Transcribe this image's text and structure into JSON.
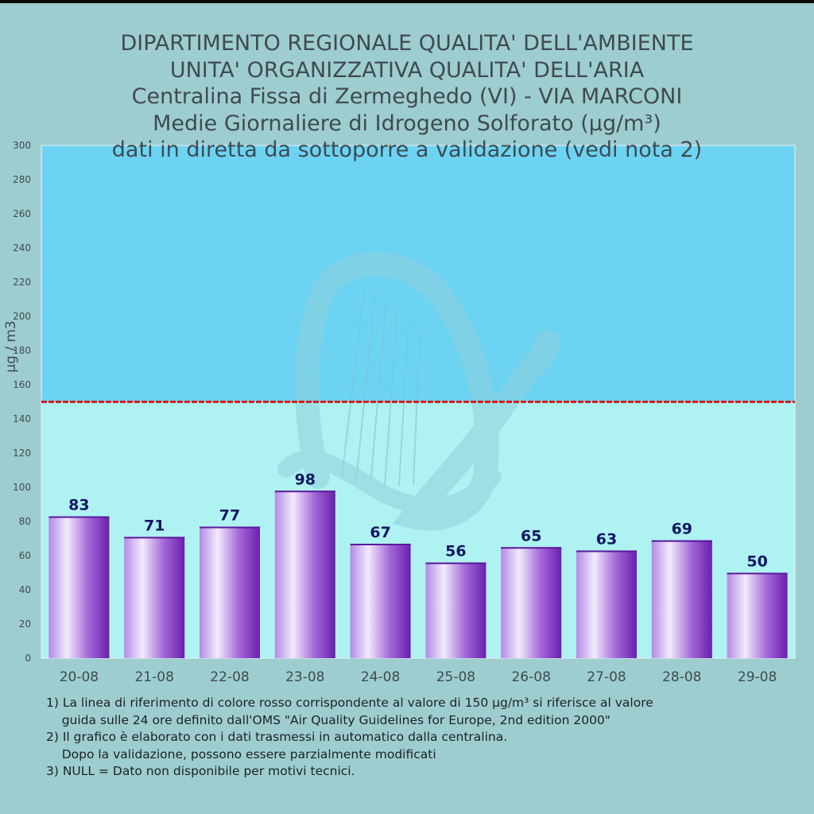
{
  "title_lines": [
    "DIPARTIMENTO REGIONALE QUALITA' DELL'AMBIENTE",
    "UNITA' ORGANIZZATIVA QUALITA' DELL'ARIA",
    "Centralina Fissa di Zermeghedo (VI) - VIA MARCONI",
    "Medie Giornaliere di Idrogeno Solforato (µg/m³)",
    "dati in diretta da sottoporre a validazione (vedi nota 2)"
  ],
  "footnotes": [
    "1) La linea di riferimento di colore rosso corrispondente al valore di 150 µg/m³ si riferisce al valore",
    "    guida sulle 24 ore definito dall'OMS \"Air Quality Guidelines for Europe, 2nd edition 2000\"",
    "2) Il grafico è elaborato con i dati trasmessi in automatico dalla centralina.",
    "    Dopo la validazione, possono essere parzialmente modificati",
    "3) NULL = Dato non disponibile per motivi tecnici."
  ],
  "colors": {
    "background": "#9ecdcf",
    "zone_above_limit": "#6dd3f2",
    "zone_below_limit": "#aff2f2",
    "reference_line": "#d42020",
    "bar_dark": "#7b2ab8",
    "bar_light": "#f2eafd",
    "value_labels": "#101860",
    "watermark": "harp-icon"
  },
  "chart_data": {
    "type": "bar",
    "categories": [
      "20-08",
      "21-08",
      "22-08",
      "23-08",
      "24-08",
      "25-08",
      "26-08",
      "27-08",
      "28-08",
      "29-08"
    ],
    "values": [
      83,
      71,
      77,
      98,
      67,
      56,
      65,
      63,
      69,
      50
    ],
    "ylabel": "µg / m3",
    "ylim": [
      0,
      300
    ],
    "yticks": [
      0,
      20,
      40,
      60,
      80,
      100,
      120,
      140,
      160,
      180,
      200,
      220,
      240,
      260,
      280,
      300
    ],
    "reference_line": 150,
    "data_labels": true,
    "grid": false
  }
}
